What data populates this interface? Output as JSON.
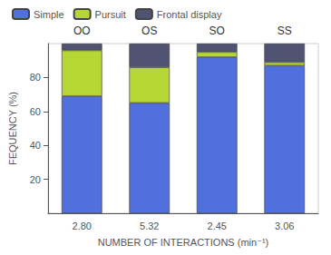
{
  "chart_data": {
    "type": "bar",
    "xlabel": "NUMBER OF INTERACTIONS (min⁻¹)",
    "ylabel": "FEQUENCY (%)",
    "categories": [
      "2.80",
      "5.32",
      "2.45",
      "3.06"
    ],
    "annotations": [
      "OO",
      "OS",
      "SO",
      "SS"
    ],
    "series": [
      {
        "name": "Simple",
        "values": [
          69,
          65,
          92,
          87
        ]
      },
      {
        "name": "Pursuit",
        "values": [
          27,
          21,
          3,
          2
        ]
      },
      {
        "name": "Frontal display",
        "values": [
          4,
          14,
          5,
          11
        ]
      }
    ],
    "ylim": [
      0,
      100
    ],
    "yticks": [
      20,
      40,
      60,
      80
    ],
    "stacked": true,
    "legend": "upper left",
    "grid": false
  }
}
